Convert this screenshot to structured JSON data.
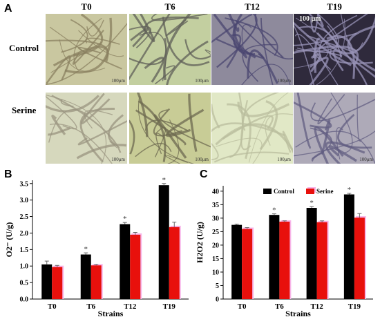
{
  "panels": {
    "A": {
      "letter": "A",
      "columns": [
        "T0",
        "T6",
        "T12",
        "T19"
      ],
      "rows": [
        "Control",
        "Serine"
      ],
      "scale_label": "100μm",
      "scale_label_big": "100 μm",
      "tones": [
        [
          "#c9c7a0",
          "#c3cfa0",
          "#8e8a9c",
          "#2f2a3c"
        ],
        [
          "#d6d8bd",
          "#c8cc96",
          "#e1e8c6",
          "#aeaab8"
        ]
      ],
      "fibre_colors": [
        [
          "#8a8060",
          "#5f5f58",
          "#4a4670",
          "#9a94b8"
        ],
        [
          "#9a9480",
          "#6d6a50",
          "#b9bd9e",
          "#625e82"
        ]
      ]
    },
    "B": {
      "letter": "B"
    },
    "C": {
      "letter": "C"
    }
  },
  "colors": {
    "control": "#000000",
    "serine": "#e8100c",
    "serine_shadow": "#f7b6ea"
  },
  "chart_data": [
    {
      "panel": "B",
      "type": "bar",
      "categories": [
        "T0",
        "T6",
        "T12",
        "T19"
      ],
      "series": [
        {
          "name": "Control",
          "values": [
            1.05,
            1.35,
            2.27,
            3.45
          ],
          "errors": [
            0.1,
            0.05,
            0.05,
            0.05
          ],
          "significant": [
            false,
            true,
            true,
            true
          ]
        },
        {
          "name": "Serine",
          "values": [
            0.97,
            1.02,
            1.95,
            2.18
          ],
          "errors": [
            0.05,
            0.03,
            0.07,
            0.15
          ],
          "significant": [
            false,
            false,
            false,
            false
          ]
        }
      ],
      "xlabel": "Strains",
      "ylabel": "O2⁻ (U/g)",
      "ylim": [
        0,
        3.6
      ],
      "yticks": [
        "0.0",
        "0.5",
        "1.0",
        "1.5",
        "2.0",
        "2.5",
        "3.0",
        "3.5"
      ],
      "legend": false,
      "marker": "*"
    },
    {
      "panel": "C",
      "type": "bar",
      "categories": [
        "T0",
        "T6",
        "T12",
        "T19"
      ],
      "series": [
        {
          "name": "Control",
          "values": [
            27.5,
            31.2,
            33.8,
            38.8
          ],
          "errors": [
            0.3,
            0.4,
            0.5,
            0.4
          ],
          "significant": [
            false,
            true,
            true,
            true
          ]
        },
        {
          "name": "Serine",
          "values": [
            26.0,
            28.7,
            28.5,
            30.2
          ],
          "errors": [
            0.5,
            0.3,
            0.5,
            1.5
          ],
          "significant": [
            false,
            false,
            false,
            false
          ]
        }
      ],
      "xlabel": "Strains",
      "ylabel": "H2O2 (U/g)",
      "ylim": [
        0,
        42
      ],
      "yticks": [
        "0",
        "5",
        "10",
        "15",
        "20",
        "25",
        "30",
        "35",
        "40"
      ],
      "legend": true,
      "legend_placement": "top-center",
      "marker": "*"
    }
  ]
}
